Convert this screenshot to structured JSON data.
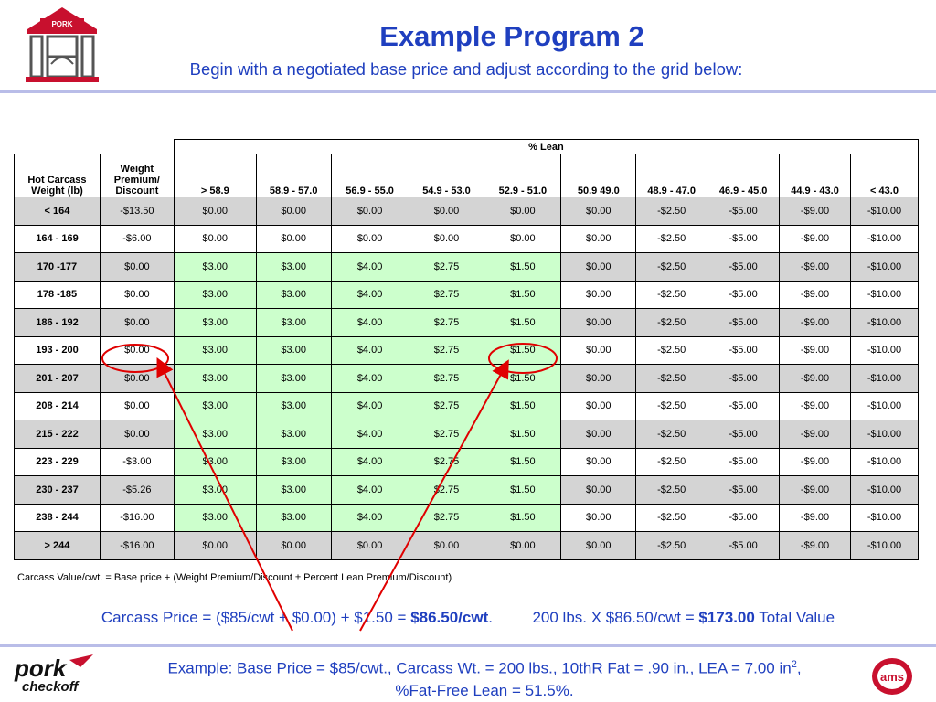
{
  "header": {
    "title": "Example Program 2",
    "subtitle": "Begin with a negotiated base price and adjust according to the grid below:",
    "logo_text": "PORK"
  },
  "table": {
    "lean_header": "% Lean",
    "weight_col_header_1": "Hot Carcass",
    "weight_col_header_2": "Weight (lb)",
    "premium_col_header_1": "Weight",
    "premium_col_header_2": "Premium/",
    "premium_col_header_3": "Discount",
    "lean_columns": [
      ">  58.9",
      "58.9 - 57.0",
      "56.9 - 55.0",
      "54.9 - 53.0",
      "52.9 - 51.0",
      "50.9  49.0",
      "48.9 - 47.0",
      "46.9 - 45.0",
      "44.9 - 43.0",
      "< 43.0"
    ],
    "rows": [
      {
        "weight": "< 164",
        "premium": "-$13.50",
        "values": [
          "$0.00",
          "$0.00",
          "$0.00",
          "$0.00",
          "$0.00",
          "$0.00",
          "-$2.50",
          "-$5.00",
          "-$9.00",
          "-$10.00"
        ]
      },
      {
        "weight": "164 - 169",
        "premium": "-$6.00",
        "values": [
          "$0.00",
          "$0.00",
          "$0.00",
          "$0.00",
          "$0.00",
          "$0.00",
          "-$2.50",
          "-$5.00",
          "-$9.00",
          "-$10.00"
        ]
      },
      {
        "weight": "170 -177",
        "premium": "$0.00",
        "values": [
          "$3.00",
          "$3.00",
          "$4.00",
          "$2.75",
          "$1.50",
          "$0.00",
          "-$2.50",
          "-$5.00",
          "-$9.00",
          "-$10.00"
        ]
      },
      {
        "weight": "178 -185",
        "premium": "$0.00",
        "values": [
          "$3.00",
          "$3.00",
          "$4.00",
          "$2.75",
          "$1.50",
          "$0.00",
          "-$2.50",
          "-$5.00",
          "-$9.00",
          "-$10.00"
        ]
      },
      {
        "weight": "186 - 192",
        "premium": "$0.00",
        "values": [
          "$3.00",
          "$3.00",
          "$4.00",
          "$2.75",
          "$1.50",
          "$0.00",
          "-$2.50",
          "-$5.00",
          "-$9.00",
          "-$10.00"
        ]
      },
      {
        "weight": "193 - 200",
        "premium": "$0.00",
        "values": [
          "$3.00",
          "$3.00",
          "$4.00",
          "$2.75",
          "$1.50",
          "$0.00",
          "-$2.50",
          "-$5.00",
          "-$9.00",
          "-$10.00"
        ]
      },
      {
        "weight": "201 - 207",
        "premium": "$0.00",
        "values": [
          "$3.00",
          "$3.00",
          "$4.00",
          "$2.75",
          "$1.50",
          "$0.00",
          "-$2.50",
          "-$5.00",
          "-$9.00",
          "-$10.00"
        ]
      },
      {
        "weight": "208 - 214",
        "premium": "$0.00",
        "values": [
          "$3.00",
          "$3.00",
          "$4.00",
          "$2.75",
          "$1.50",
          "$0.00",
          "-$2.50",
          "-$5.00",
          "-$9.00",
          "-$10.00"
        ]
      },
      {
        "weight": "215 - 222",
        "premium": "$0.00",
        "values": [
          "$3.00",
          "$3.00",
          "$4.00",
          "$2.75",
          "$1.50",
          "$0.00",
          "-$2.50",
          "-$5.00",
          "-$9.00",
          "-$10.00"
        ]
      },
      {
        "weight": "223 - 229",
        "premium": "-$3.00",
        "values": [
          "$3.00",
          "$3.00",
          "$4.00",
          "$2.75",
          "$1.50",
          "$0.00",
          "-$2.50",
          "-$5.00",
          "-$9.00",
          "-$10.00"
        ]
      },
      {
        "weight": "230 - 237",
        "premium": "-$5.26",
        "values": [
          "$3.00",
          "$3.00",
          "$4.00",
          "$2.75",
          "$1.50",
          "$0.00",
          "-$2.50",
          "-$5.00",
          "-$9.00",
          "-$10.00"
        ]
      },
      {
        "weight": "238 - 244",
        "premium": "-$16.00",
        "values": [
          "$3.00",
          "$3.00",
          "$4.00",
          "$2.75",
          "$1.50",
          "$0.00",
          "-$2.50",
          "-$5.00",
          "-$9.00",
          "-$10.00"
        ]
      },
      {
        "weight": "> 244",
        "premium": "-$16.00",
        "values": [
          "$0.00",
          "$0.00",
          "$0.00",
          "$0.00",
          "$0.00",
          "$0.00",
          "-$2.50",
          "-$5.00",
          "-$9.00",
          "-$10.00"
        ]
      }
    ]
  },
  "formula": "Carcass Value/cwt. = Base price + (Weight Premium/Discount ± Percent Lean Premium/Discount)",
  "calculation": {
    "price_prefix": "Carcass Price = ($85/cwt + $0.00) + $1.50 = ",
    "price_result": "$86.50/cwt",
    "price_suffix": ".",
    "total_prefix": "200 lbs. X $86.50/cwt = ",
    "total_result": "$173.00",
    "total_suffix": " Total Value"
  },
  "example": {
    "line1_prefix": "Example: Base Price = $85/cwt., Carcass Wt. = 200 lbs., 10thR Fat = .90 in., LEA = 7.00 in",
    "line1_sup": "2",
    "line1_suffix": ",",
    "line2": "%Fat-Free Lean = 51.5%."
  },
  "logos": {
    "pork_checkoff_line1": "pork",
    "pork_checkoff_line2": "checkoff",
    "ams_text": "ams"
  },
  "colors": {
    "accent_blue": "#1f3fbf",
    "premium_green": "#ccffcc",
    "shade_gray": "#d4d4d4",
    "annotation_red": "#e00000",
    "logo_red": "#c8102e"
  }
}
